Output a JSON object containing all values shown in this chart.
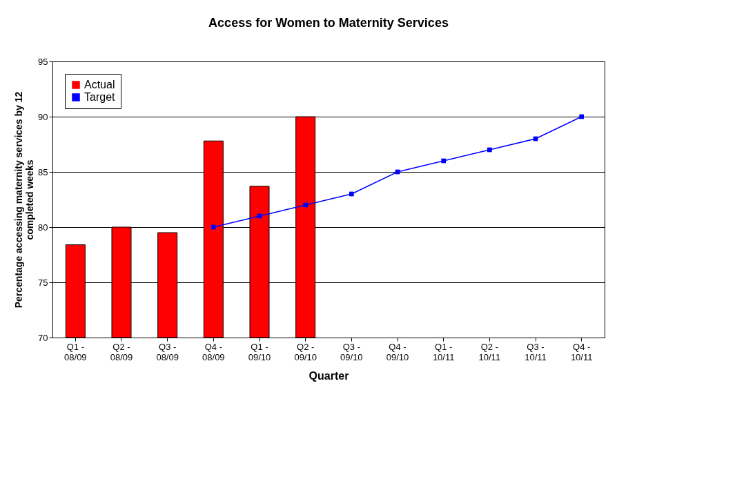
{
  "chart_data": {
    "type": "bar",
    "title": "Access for Women to Maternity Services",
    "xlabel": "Quarter",
    "ylabel": "Percentage accessing maternity services by 12\ncompleted weeks",
    "categories": [
      "Q1 -\n08/09",
      "Q2 -\n08/09",
      "Q3 -\n08/09",
      "Q4 -\n08/09",
      "Q1 -\n09/10",
      "Q2 -\n09/10",
      "Q3 -\n09/10",
      "Q4 -\n09/10",
      "Q1 -\n10/11",
      "Q2 -\n10/11",
      "Q3 -\n10/11",
      "Q4 -\n10/11"
    ],
    "series": [
      {
        "name": "Actual",
        "color": "#ff0000",
        "values": [
          78.4,
          80.0,
          79.5,
          87.8,
          83.7,
          90.0,
          null,
          null,
          null,
          null,
          null,
          null
        ]
      },
      {
        "name": "Target",
        "type": "line",
        "color": "#0000ff",
        "marker": "square",
        "values": [
          null,
          null,
          null,
          80,
          81,
          82,
          83,
          85,
          86,
          87,
          88,
          90
        ]
      }
    ],
    "ylim": [
      70,
      95
    ],
    "yticks": [
      70,
      75,
      80,
      85,
      90,
      95
    ],
    "grid": "y",
    "legend": "top left"
  }
}
